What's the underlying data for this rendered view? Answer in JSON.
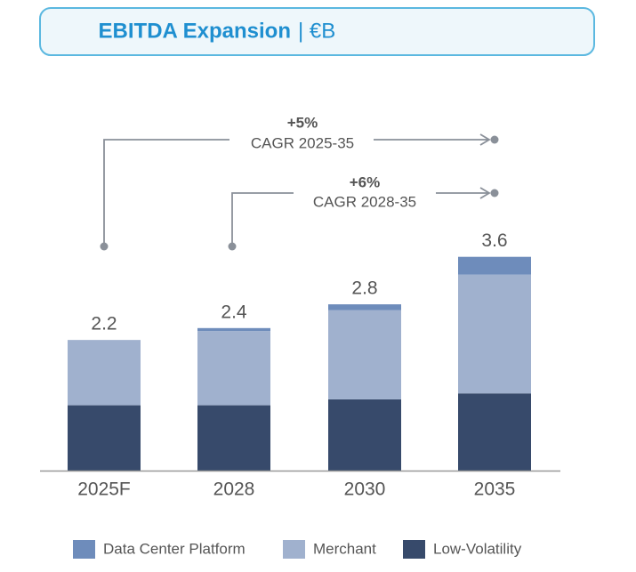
{
  "chart_data": {
    "type": "stacked-bar",
    "title": "EBITDA Expansion",
    "unit": "| €B",
    "categories": [
      "2025F",
      "2028",
      "2030",
      "2035"
    ],
    "series": [
      {
        "name": "Low-Volatility",
        "color": "#374a6b",
        "values": [
          1.1,
          1.1,
          1.2,
          1.3
        ]
      },
      {
        "name": "Merchant",
        "color": "#a0b1ce",
        "values": [
          1.1,
          1.25,
          1.5,
          2.0
        ]
      },
      {
        "name": "Data Center Platform",
        "color": "#6e8cbb",
        "values": [
          0,
          0.05,
          0.1,
          0.3
        ]
      }
    ],
    "totals": [
      2.2,
      2.4,
      2.8,
      3.6
    ],
    "annotations": [
      {
        "value": "+5%",
        "label": "CAGR 2025-35"
      },
      {
        "value": "+6%",
        "label": "CAGR 2028-35"
      }
    ],
    "ylim": [
      0,
      4
    ]
  }
}
